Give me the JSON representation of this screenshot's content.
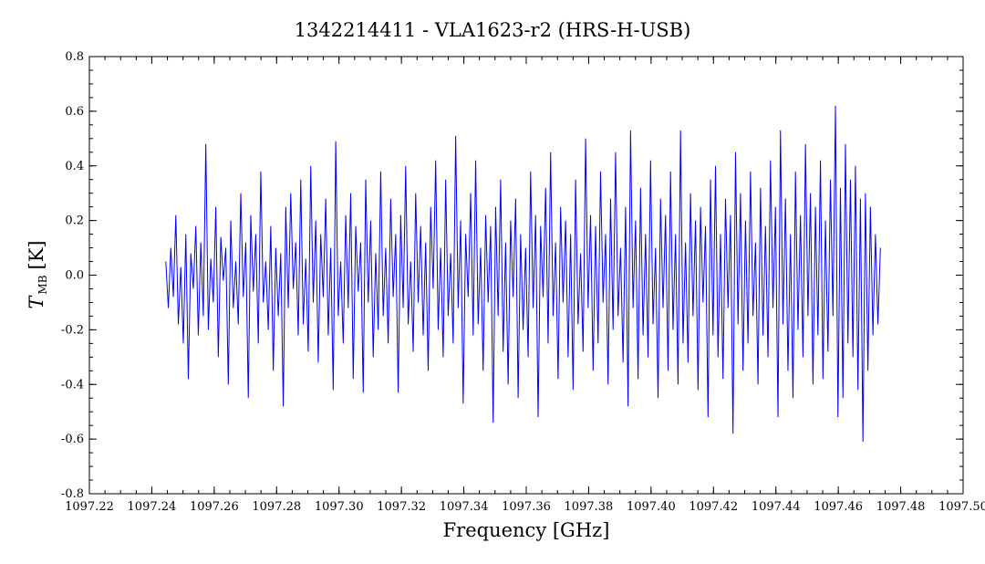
{
  "chart_data": {
    "type": "line",
    "title": "1342214411 - VLA1623-r2 (HRS-H-USB)",
    "xlabel": "Frequency [GHz]",
    "ylabel_main": "T",
    "ylabel_sub": "MB",
    "ylabel_unit": "[K]",
    "xlim": [
      1097.22,
      1097.5
    ],
    "ylim": [
      -0.8,
      0.8
    ],
    "x_ticks": [
      "1097.22",
      "1097.24",
      "1097.26",
      "1097.28",
      "1097.30",
      "1097.32",
      "1097.34",
      "1097.36",
      "1097.38",
      "1097.40",
      "1097.42",
      "1097.44",
      "1097.46",
      "1097.48",
      "1097.50"
    ],
    "y_ticks": [
      "-0.8",
      "-0.6",
      "-0.4",
      "-0.2",
      "0.0",
      "0.2",
      "0.4",
      "0.6",
      "0.8"
    ],
    "grid": false,
    "line_color": "#0000ff",
    "series": [
      {
        "x_start": 1097.2445,
        "x_end": 1097.4735,
        "values": [
          0.05,
          -0.12,
          0.1,
          -0.08,
          0.22,
          -0.18,
          0.03,
          -0.25,
          0.15,
          -0.38,
          0.08,
          -0.05,
          0.18,
          -0.22,
          0.12,
          -0.15,
          0.48,
          -0.2,
          0.06,
          -0.1,
          0.25,
          -0.3,
          0.14,
          -0.02,
          0.1,
          -0.4,
          0.2,
          -0.12,
          0.05,
          -0.18,
          0.3,
          -0.08,
          0.12,
          -0.45,
          0.22,
          -0.06,
          0.15,
          -0.25,
          0.38,
          -0.1,
          0.05,
          -0.2,
          0.18,
          -0.35,
          0.1,
          -0.15,
          0.08,
          -0.48,
          0.25,
          -0.12,
          0.3,
          -0.05,
          0.12,
          -0.22,
          0.35,
          -0.18,
          0.06,
          -0.28,
          0.4,
          -0.1,
          0.2,
          -0.32,
          0.15,
          -0.08,
          0.28,
          -0.22,
          0.1,
          -0.42,
          0.49,
          -0.15,
          0.05,
          -0.25,
          0.22,
          -0.12,
          0.3,
          -0.38,
          0.18,
          -0.06,
          0.12,
          -0.43,
          0.35,
          -0.1,
          0.2,
          -0.3,
          0.08,
          -0.2,
          0.38,
          -0.15,
          0.1,
          -0.25,
          0.28,
          -0.08,
          0.15,
          -0.43,
          0.22,
          -0.12,
          0.4,
          -0.18,
          0.05,
          -0.28,
          0.3,
          -0.1,
          0.18,
          -0.22,
          0.12,
          -0.35,
          0.25,
          -0.05,
          0.42,
          -0.2,
          0.1,
          -0.3,
          0.35,
          -0.15,
          0.08,
          -0.25,
          0.51,
          -0.12,
          0.2,
          -0.47,
          0.15,
          -0.08,
          0.3,
          -0.22,
          0.42,
          -0.18,
          0.1,
          -0.35,
          0.22,
          -0.1,
          0.18,
          -0.54,
          0.25,
          -0.15,
          0.35,
          -0.28,
          0.12,
          -0.4,
          0.2,
          -0.08,
          0.28,
          -0.45,
          0.15,
          -0.2,
          0.1,
          -0.3,
          0.38,
          -0.12,
          0.22,
          -0.52,
          0.18,
          -0.08,
          0.32,
          -0.25,
          0.45,
          -0.15,
          0.12,
          -0.38,
          0.25,
          -0.1,
          0.2,
          -0.3,
          0.15,
          -0.42,
          0.35,
          -0.18,
          0.08,
          -0.28,
          0.5,
          -0.12,
          0.22,
          -0.35,
          0.18,
          -0.25,
          0.38,
          -0.1,
          0.15,
          -0.4,
          0.28,
          -0.2,
          0.45,
          -0.15,
          0.1,
          -0.32,
          0.25,
          -0.48,
          0.53,
          -0.12,
          0.2,
          -0.38,
          0.32,
          -0.22,
          0.15,
          -0.3,
          0.42,
          -0.18,
          0.1,
          -0.45,
          0.28,
          -0.12,
          0.22,
          -0.35,
          0.38,
          -0.2,
          0.15,
          -0.4,
          0.53,
          -0.25,
          0.12,
          -0.32,
          0.3,
          -0.15,
          0.2,
          -0.42,
          0.25,
          -0.1,
          0.18,
          -0.52,
          0.35,
          -0.22,
          0.4,
          -0.3,
          0.15,
          -0.38,
          0.28,
          -0.12,
          0.22,
          -0.58,
          0.45,
          -0.18,
          0.3,
          -0.35,
          0.2,
          -0.25,
          0.38,
          -0.15,
          0.12,
          -0.4,
          0.32,
          -0.22,
          0.18,
          -0.3,
          0.42,
          -0.12,
          0.25,
          -0.52,
          0.53,
          -0.18,
          0.28,
          -0.35,
          0.15,
          -0.45,
          0.38,
          -0.2,
          0.22,
          -0.3,
          0.48,
          -0.15,
          0.3,
          -0.4,
          0.25,
          -0.22,
          0.42,
          -0.38,
          0.2,
          -0.28,
          0.35,
          -0.15,
          0.62,
          -0.52,
          0.32,
          -0.45,
          0.48,
          -0.25,
          0.35,
          -0.3,
          0.4,
          -0.42,
          0.28,
          -0.61,
          0.3,
          -0.35,
          0.25,
          -0.22,
          0.15,
          -0.18,
          0.1
        ]
      }
    ]
  }
}
